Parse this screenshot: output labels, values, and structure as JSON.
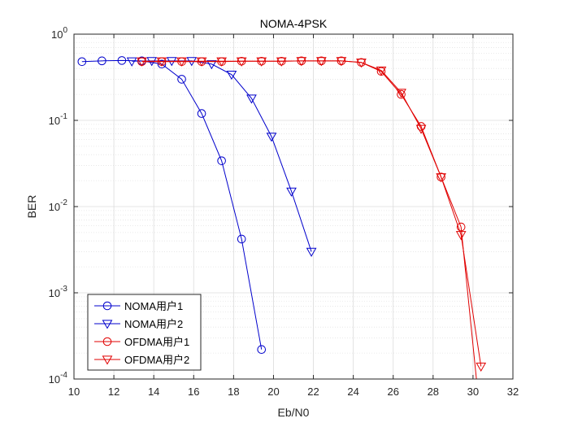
{
  "chart_data": {
    "type": "line",
    "title": "NOMA-4PSK",
    "xlabel": "Eb/N0",
    "ylabel": "BER",
    "xlim": [
      10,
      32
    ],
    "ylim": [
      0.0001,
      1
    ],
    "yscale": "log",
    "grid": true,
    "minor_grid": true,
    "legend_position": "bottom-left",
    "x_ticks": [
      10,
      12,
      14,
      16,
      18,
      20,
      22,
      24,
      26,
      28,
      30,
      32
    ],
    "y_ticks": [
      0.0001,
      0.001,
      0.01,
      0.1,
      1
    ],
    "y_tick_labels": [
      {
        "base": "10",
        "exp": "-4"
      },
      {
        "base": "10",
        "exp": "-3"
      },
      {
        "base": "10",
        "exp": "-2"
      },
      {
        "base": "10",
        "exp": "-1"
      },
      {
        "base": "10",
        "exp": "0"
      }
    ],
    "series": [
      {
        "name": "NOMA用户1",
        "color": "#0000cc",
        "marker": "circle",
        "x": [
          10.4,
          11.4,
          12.4,
          13.4,
          14.4,
          15.4,
          16.4,
          17.4,
          18.4,
          19.4
        ],
        "y": [
          0.48,
          0.49,
          0.495,
          0.49,
          0.45,
          0.3,
          0.12,
          0.034,
          0.0042,
          0.00022
        ]
      },
      {
        "name": "NOMA用户2",
        "color": "#0000cc",
        "marker": "triangle-down",
        "x": [
          12.9,
          13.9,
          14.9,
          15.9,
          16.9,
          17.9,
          18.9,
          19.9,
          20.9,
          21.9
        ],
        "y": [
          0.485,
          0.49,
          0.49,
          0.49,
          0.45,
          0.34,
          0.18,
          0.065,
          0.015,
          0.003
        ]
      },
      {
        "name": "OFDMA用户1",
        "color": "#e00000",
        "marker": "circle",
        "x": [
          13.4,
          14.4,
          15.4,
          16.4,
          17.4,
          18.4,
          19.4,
          20.4,
          21.4,
          22.4,
          23.4,
          24.4,
          25.4,
          26.4,
          27.4,
          28.4,
          29.4,
          30.4
        ],
        "y": [
          0.48,
          0.48,
          0.48,
          0.48,
          0.48,
          0.485,
          0.485,
          0.485,
          0.49,
          0.49,
          0.49,
          0.47,
          0.37,
          0.2,
          0.085,
          0.022,
          0.0058,
          3e-05
        ]
      },
      {
        "name": "OFDMA用户2",
        "color": "#e00000",
        "marker": "triangle-down",
        "x": [
          13.4,
          14.4,
          15.4,
          16.4,
          17.4,
          18.4,
          19.4,
          20.4,
          21.4,
          22.4,
          23.4,
          24.4,
          25.4,
          26.4,
          27.4,
          28.4,
          29.4,
          30.4
        ],
        "y": [
          0.485,
          0.485,
          0.485,
          0.485,
          0.485,
          0.485,
          0.485,
          0.485,
          0.49,
          0.49,
          0.49,
          0.47,
          0.38,
          0.21,
          0.08,
          0.022,
          0.0047,
          0.00014
        ]
      }
    ]
  }
}
